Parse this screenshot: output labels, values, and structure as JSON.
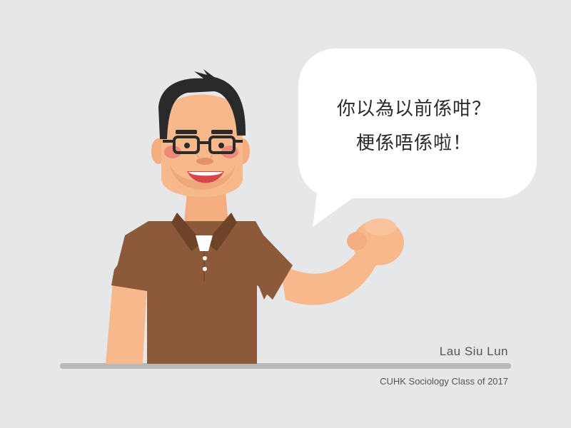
{
  "speech_bubble": {
    "line1": "你以為以前係咁？",
    "line2": "梗係唔係啦！"
  },
  "credit": {
    "name": "Lau Siu Lun",
    "subtitle": "CUHK Sociology Class of 2017"
  },
  "colors": {
    "background": "#e6e7e8",
    "skin": "#f7b98c",
    "shirt": "#8c5a3a",
    "collar": "#6e4328",
    "hair": "#2a2a2a",
    "bubble": "#ffffff",
    "floor_line": "#b8b9bb"
  }
}
